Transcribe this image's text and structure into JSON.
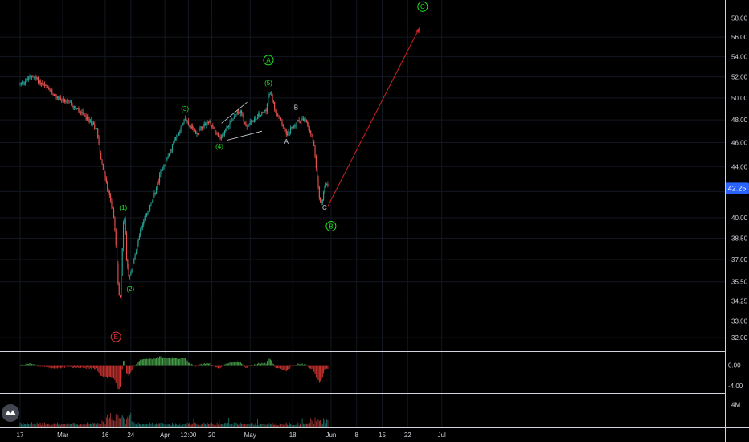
{
  "chart_data": {
    "type": "candlestick",
    "price_axis": {
      "ticks": [
        "58.00",
        "56.00",
        "54.00",
        "52.00",
        "50.00",
        "48.00",
        "46.00",
        "44.00",
        "42.00",
        "40.00",
        "38.50",
        "37.00",
        "35.50",
        "34.25",
        "33.00",
        "32.00"
      ],
      "tick_values": [
        58,
        56,
        54,
        52,
        50,
        48,
        46,
        44,
        42,
        40,
        38.5,
        37,
        35.5,
        34.25,
        33,
        32
      ],
      "scale": "log",
      "range": [
        31.2,
        60
      ],
      "last_price": "42.25",
      "last_price_color": "#2962ff"
    },
    "oscillator_axis": {
      "ticks": [
        "0.00",
        "-4.00"
      ],
      "tick_values": [
        0,
        -4
      ],
      "range": [
        -5.4,
        2.6
      ]
    },
    "volume_axis": {
      "ticks": [
        "4M"
      ],
      "tick_values": [
        4
      ],
      "unit": "M",
      "range": [
        0,
        6
      ]
    },
    "time_axis": {
      "labels": [
        "17",
        "Mar",
        "16",
        "24",
        "Apr",
        "12:00",
        "20",
        "May",
        "18",
        "Jun",
        "8",
        "15",
        "22",
        "Jul"
      ],
      "label_day_index": [
        0,
        10,
        20,
        26,
        34,
        39.5,
        45,
        54,
        64,
        73,
        79,
        85,
        91,
        99
      ]
    },
    "price_path": [
      [
        0,
        51.3
      ],
      [
        3,
        52.1
      ],
      [
        6,
        51.0
      ],
      [
        9,
        50.0
      ],
      [
        12,
        49.4
      ],
      [
        14,
        48.7
      ],
      [
        16,
        48.0
      ],
      [
        18,
        47.2
      ],
      [
        19,
        44.5
      ],
      [
        20,
        43.0
      ],
      [
        21,
        41.7
      ],
      [
        22,
        40.2
      ],
      [
        22.5,
        38.0
      ],
      [
        23,
        35.5
      ],
      [
        23.4,
        34.0
      ],
      [
        23.8,
        36.2
      ],
      [
        24.2,
        39.5
      ],
      [
        24.6,
        40.1
      ],
      [
        25.0,
        37.0
      ],
      [
        25.5,
        35.8
      ],
      [
        26.0,
        36.0
      ],
      [
        26.5,
        36.8
      ],
      [
        27.2,
        37.5
      ],
      [
        28.0,
        38.8
      ],
      [
        29.0,
        39.6
      ],
      [
        30,
        40.5
      ],
      [
        31,
        41.2
      ],
      [
        32,
        42.3
      ],
      [
        33,
        43.5
      ],
      [
        34,
        44.3
      ],
      [
        35,
        45.0
      ],
      [
        36,
        46.0
      ],
      [
        37,
        46.6
      ],
      [
        38,
        47.6
      ],
      [
        38.7,
        48.2
      ],
      [
        39.5,
        47.6
      ],
      [
        40.5,
        47.2
      ],
      [
        41.5,
        46.7
      ],
      [
        42.5,
        47.4
      ],
      [
        43.5,
        47.7
      ],
      [
        44.5,
        47.8
      ],
      [
        45.5,
        47.2
      ],
      [
        46.5,
        46.5
      ],
      [
        47,
        46.2
      ],
      [
        48,
        47.0
      ],
      [
        49,
        47.6
      ],
      [
        50,
        48.2
      ],
      [
        51,
        48.8
      ],
      [
        52,
        48.6
      ],
      [
        53,
        47.3
      ],
      [
        54,
        47.7
      ],
      [
        55,
        48.1
      ],
      [
        56,
        48.4
      ],
      [
        57,
        48.6
      ],
      [
        57.8,
        49.0
      ],
      [
        58.4,
        50.4
      ],
      [
        59,
        50.2
      ],
      [
        60,
        48.8
      ],
      [
        61,
        48.3
      ],
      [
        62,
        47.2
      ],
      [
        62.8,
        46.6
      ],
      [
        63.5,
        47.1
      ],
      [
        64.2,
        47.4
      ],
      [
        65,
        47.8
      ],
      [
        66,
        48.1
      ],
      [
        67,
        47.9
      ],
      [
        68,
        47.1
      ],
      [
        68.8,
        46.3
      ],
      [
        69.3,
        44.8
      ],
      [
        69.8,
        42.8
      ],
      [
        70.3,
        41.3
      ],
      [
        70.8,
        41.0
      ],
      [
        71.3,
        42.0
      ],
      [
        71.8,
        42.8
      ],
      [
        72.4,
        42.25
      ]
    ],
    "wave_labels": [
      {
        "text": "(1)",
        "day": 24.2,
        "price": 40.6,
        "color": "green"
      },
      {
        "text": "(2)",
        "day": 25.9,
        "price": 34.9,
        "color": "green"
      },
      {
        "text": "(3)",
        "day": 38.7,
        "price": 48.8,
        "color": "green"
      },
      {
        "text": "(4)",
        "day": 46.8,
        "price": 45.5,
        "color": "green"
      },
      {
        "text": "(5)",
        "day": 58.3,
        "price": 51.2,
        "color": "green"
      },
      {
        "text": "A",
        "day": 58.3,
        "price": 53.4,
        "color": "green",
        "circled": true
      },
      {
        "text": "B",
        "day": 64.8,
        "price": 48.9,
        "color": "white"
      },
      {
        "text": "A",
        "day": 62.5,
        "price": 45.9,
        "color": "white"
      },
      {
        "text": "C",
        "day": 71.5,
        "price": 40.6,
        "color": "white"
      },
      {
        "text": "B",
        "day": 73.0,
        "price": 39.2,
        "color": "green",
        "circled": true
      },
      {
        "text": "C",
        "day": 94.5,
        "price": 59.0,
        "color": "green",
        "circled": true
      },
      {
        "text": "E",
        "day": 22.5,
        "price": 31.9,
        "color": "red",
        "circled": true
      }
    ],
    "projection_arrow": {
      "from": [
        72.3,
        40.9
      ],
      "to": [
        93.8,
        57.0
      ],
      "color": "#cc2222"
    },
    "triangle_lines": [
      {
        "from": [
          47.3,
          47.7
        ],
        "to": [
          53.3,
          49.6
        ]
      },
      {
        "from": [
          48.5,
          46.2
        ],
        "to": [
          56.8,
          47.0
        ]
      }
    ],
    "colors": {
      "up": "#26a69a",
      "down": "#ef5350",
      "osc_up": "#4caf50",
      "osc_down": "#e53935",
      "grid": "#131722",
      "divider": "#d1d4dc"
    }
  }
}
